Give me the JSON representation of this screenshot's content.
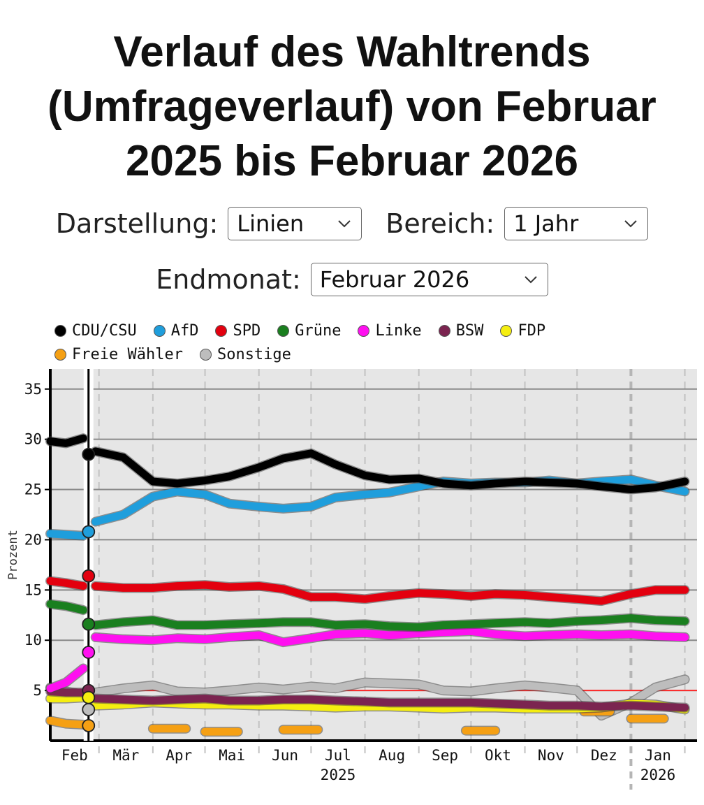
{
  "title": "Verlauf des Wahltrends (Umfrageverlauf) von Februar 2025 bis Februar 2026",
  "controls": {
    "darstellung_label": "Darstellung:",
    "darstellung_value": "Linien",
    "bereich_label": "Bereich:",
    "bereich_value": "1 Jahr",
    "endmonat_label": "Endmonat:",
    "endmonat_value": "Februar 2026"
  },
  "chart_data": {
    "type": "line",
    "ylabel": "Prozent",
    "ylim": [
      0,
      37
    ],
    "yticks": [
      5,
      10,
      15,
      20,
      25,
      30,
      35
    ],
    "threshold": 5,
    "x_months": [
      "Feb",
      "Mär",
      "Apr",
      "Mai",
      "Jun",
      "Jul",
      "Aug",
      "Sep",
      "Okt",
      "Nov",
      "Dez",
      "Jan"
    ],
    "year_labels": [
      {
        "month": "Jul",
        "label": "2025"
      },
      {
        "month": "Jan",
        "label": "2026"
      }
    ],
    "election_marker": "Feb",
    "election_results": [
      {
        "party": "CDU/CSU",
        "value": 28.5
      },
      {
        "party": "AfD",
        "value": 20.8
      },
      {
        "party": "SPD",
        "value": 16.4
      },
      {
        "party": "Grüne",
        "value": 11.6
      },
      {
        "party": "Linke",
        "value": 8.8
      },
      {
        "party": "BSW",
        "value": 5.0
      },
      {
        "party": "FDP",
        "value": 4.3
      },
      {
        "party": "Sonstige",
        "value": 3.1
      },
      {
        "party": "Freie Wähler",
        "value": 1.5
      }
    ],
    "x": [
      "2025-02-01",
      "2025-02-10",
      "2025-02-20",
      "2025-02-27",
      "2025-03-15",
      "2025-04-01",
      "2025-04-15",
      "2025-05-01",
      "2025-05-15",
      "2025-06-01",
      "2025-06-15",
      "2025-07-01",
      "2025-07-15",
      "2025-08-01",
      "2025-08-15",
      "2025-09-01",
      "2025-09-15",
      "2025-10-01",
      "2025-10-15",
      "2025-11-01",
      "2025-11-15",
      "2025-12-01",
      "2025-12-15",
      "2026-01-01",
      "2026-01-15",
      "2026-02-01"
    ],
    "series": [
      {
        "name": "CDU/CSU",
        "color": "#000000",
        "values": [
          29.8,
          29.6,
          30.1,
          28.8,
          28.2,
          25.8,
          25.6,
          25.9,
          26.3,
          27.2,
          28.1,
          28.6,
          27.5,
          26.4,
          26.0,
          26.1,
          25.6,
          25.4,
          25.6,
          25.8,
          25.7,
          25.6,
          25.3,
          25.0,
          25.2,
          25.8
        ]
      },
      {
        "name": "AfD",
        "color": "#1F9EDC",
        "values": [
          20.6,
          20.5,
          20.4,
          21.8,
          22.5,
          24.3,
          24.8,
          24.5,
          23.6,
          23.3,
          23.1,
          23.3,
          24.2,
          24.5,
          24.7,
          25.3,
          25.8,
          25.6,
          25.7,
          25.7,
          25.9,
          25.6,
          25.8,
          26.0,
          25.4,
          24.8
        ]
      },
      {
        "name": "SPD",
        "color": "#E3000F",
        "values": [
          15.9,
          15.7,
          15.4,
          15.4,
          15.2,
          15.2,
          15.4,
          15.5,
          15.3,
          15.4,
          15.1,
          14.3,
          14.3,
          14.1,
          14.4,
          14.7,
          14.6,
          14.4,
          14.6,
          14.5,
          14.3,
          14.1,
          13.9,
          14.6,
          15.0,
          15.0
        ]
      },
      {
        "name": "Grüne",
        "color": "#1A7F1F",
        "values": [
          13.6,
          13.4,
          13.0,
          11.5,
          11.8,
          12.0,
          11.5,
          11.5,
          11.6,
          11.7,
          11.8,
          11.8,
          11.5,
          11.6,
          11.4,
          11.3,
          11.5,
          11.6,
          11.7,
          11.8,
          11.7,
          11.9,
          12.0,
          12.2,
          12.0,
          11.9
        ]
      },
      {
        "name": "Linke",
        "color": "#FF10F0",
        "values": [
          5.2,
          5.8,
          7.2,
          10.3,
          10.1,
          10.0,
          10.2,
          10.1,
          10.3,
          10.5,
          9.8,
          10.2,
          10.6,
          10.7,
          10.5,
          10.7,
          10.8,
          10.9,
          10.6,
          10.4,
          10.5,
          10.6,
          10.5,
          10.6,
          10.4,
          10.3
        ]
      },
      {
        "name": "BSW",
        "color": "#7B2450",
        "values": [
          4.9,
          4.8,
          4.8,
          4.2,
          4.1,
          4.0,
          4.1,
          4.2,
          4.0,
          4.0,
          4.1,
          4.1,
          4.0,
          3.9,
          3.8,
          3.8,
          3.8,
          3.8,
          3.7,
          3.6,
          3.5,
          3.5,
          3.4,
          3.5,
          3.4,
          3.3
        ]
      },
      {
        "name": "FDP",
        "color": "#F5EE10",
        "values": [
          4.2,
          4.2,
          4.3,
          3.5,
          3.6,
          3.8,
          3.7,
          3.6,
          3.6,
          3.5,
          3.5,
          3.4,
          3.3,
          3.4,
          3.4,
          3.3,
          3.2,
          3.3,
          3.3,
          3.2,
          3.2,
          3.2,
          3.3,
          3.7,
          3.6,
          3.1
        ]
      },
      {
        "name": "Freie Wähler",
        "color": "#F5A014",
        "segments": [
          {
            "x": [
              "2025-02-01",
              "2025-02-10",
              "2025-02-20"
            ],
            "values": [
              2.0,
              1.7,
              1.6
            ]
          },
          {
            "x": [
              "2025-04-01",
              "2025-04-20"
            ],
            "values": [
              1.2,
              1.2
            ]
          },
          {
            "x": [
              "2025-05-01",
              "2025-05-20"
            ],
            "values": [
              0.9,
              0.9
            ]
          },
          {
            "x": [
              "2025-06-15",
              "2025-07-05"
            ],
            "values": [
              1.1,
              1.1
            ]
          },
          {
            "x": [
              "2025-09-28",
              "2025-10-15"
            ],
            "values": [
              1.0,
              1.0
            ]
          },
          {
            "x": [
              "2025-12-05",
              "2025-12-20"
            ],
            "values": [
              2.9,
              2.9
            ]
          },
          {
            "x": [
              "2026-01-01",
              "2026-01-20"
            ],
            "values": [
              2.2,
              2.2
            ]
          }
        ]
      },
      {
        "name": "Sonstige",
        "color": "#BDBDBD",
        "values": [
          5.3,
          4.9,
          4.6,
          4.8,
          5.2,
          5.5,
          4.9,
          4.8,
          5.0,
          5.3,
          5.1,
          5.4,
          5.2,
          5.8,
          5.7,
          5.6,
          5.0,
          4.9,
          5.2,
          5.5,
          5.3,
          5.0,
          2.5,
          3.8,
          5.3,
          6.1
        ]
      }
    ]
  }
}
